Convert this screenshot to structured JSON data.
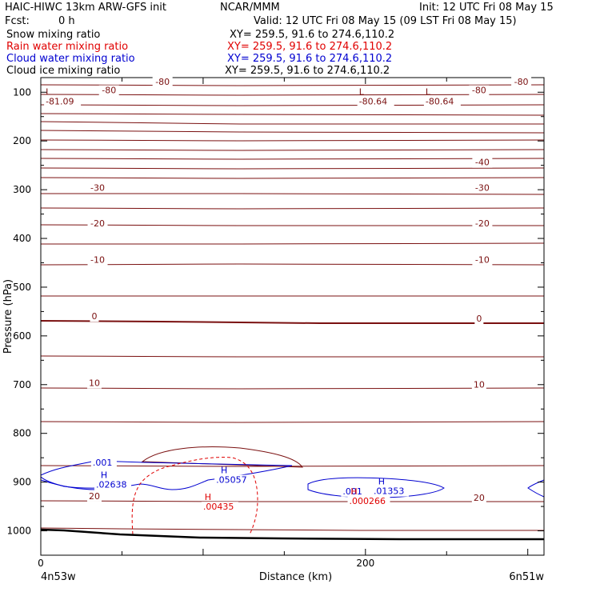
{
  "header": {
    "model": "HAIC-HIWC 13km ARW-GFS init",
    "org": "NCAR/MMM",
    "init": "Init: 12 UTC Fri 08 May 15",
    "fcst_label": "Fcst:",
    "fcst_value": "0 h",
    "valid": "Valid: 12 UTC Fri 08 May 15 (09 LST Fri 08 May 15)"
  },
  "fields": [
    {
      "name": "Snow mixing ratio",
      "xy": "XY= 259.5, 91.6 to 274.6,110.2",
      "color": "#000000"
    },
    {
      "name": "Rain water mixing ratio",
      "xy": "XY= 259.5, 91.6 to 274.6,110.2",
      "color": "#e00000"
    },
    {
      "name": "Cloud water mixing ratio",
      "xy": "XY= 259.5, 91.6 to 274.6,110.2",
      "color": "#0000d0"
    },
    {
      "name": "Cloud ice mixing ratio",
      "xy": "XY= 259.5, 91.6 to 274.6,110.2",
      "color": "#000000"
    }
  ],
  "chart_data": {
    "type": "line",
    "xlabel": "Distance (km)",
    "ylabel": "Pressure (hPa)",
    "xlim": [
      0,
      310
    ],
    "ylim": [
      1050,
      70
    ],
    "yscale": "linear, inverted",
    "x_ticks": [
      0,
      200
    ],
    "y_ticks": [
      100,
      200,
      300,
      400,
      500,
      600,
      700,
      800,
      900,
      1000
    ],
    "x_end_labels": {
      "left": "4n53w",
      "right": "6n51w"
    },
    "temperature_contours": {
      "color": "#7a1010",
      "labels": [
        {
          "text": "-80",
          "x": 75,
          "p": 85
        },
        {
          "text": "-80",
          "x": 42,
          "p": 102
        },
        {
          "text": "-80",
          "x": 270,
          "p": 102
        },
        {
          "text": "-80",
          "x": 296,
          "p": 85
        },
        {
          "text": "-40",
          "x": 272,
          "p": 250
        },
        {
          "text": "-30",
          "x": 35,
          "p": 302
        },
        {
          "text": "-30",
          "x": 272,
          "p": 302
        },
        {
          "text": "-20",
          "x": 35,
          "p": 375
        },
        {
          "text": "-20",
          "x": 272,
          "p": 375
        },
        {
          "text": "-10",
          "x": 35,
          "p": 450
        },
        {
          "text": "-10",
          "x": 272,
          "p": 450
        },
        {
          "text": "0",
          "x": 33,
          "p": 566
        },
        {
          "text": "0",
          "x": 270,
          "p": 571
        },
        {
          "text": "10",
          "x": 33,
          "p": 703
        },
        {
          "text": "10",
          "x": 270,
          "p": 706
        },
        {
          "text": "20",
          "x": 33,
          "p": 935
        },
        {
          "text": "20",
          "x": 270,
          "p": 938
        }
      ],
      "extrema": [
        {
          "symbol": "L",
          "value": "-81.09",
          "x": 3,
          "p": 82
        },
        {
          "symbol": "L",
          "value": "-80.64",
          "x": 196,
          "p": 82
        },
        {
          "symbol": "L",
          "value": "-80.64",
          "x": 237,
          "p": 82
        }
      ]
    },
    "cloud_water_extrema": [
      {
        "symbol": "H",
        "value": ".02638",
        "x": 34,
        "p": 892
      },
      {
        "symbol": "H",
        "value": ".05057",
        "x": 108,
        "p": 882
      },
      {
        "symbol": "H",
        "value": ".01353",
        "x": 205,
        "p": 905
      }
    ],
    "cloud_water_labels": [
      {
        "text": ".001",
        "x": 32,
        "p": 866
      },
      {
        "text": ".001",
        "x": 186,
        "p": 925
      }
    ],
    "rain_extrema": [
      {
        "symbol": "H",
        "value": ".00435",
        "x": 100,
        "p": 937
      },
      {
        "symbol": "H",
        "value": ".000266",
        "x": 190,
        "p": 925
      }
    ]
  }
}
